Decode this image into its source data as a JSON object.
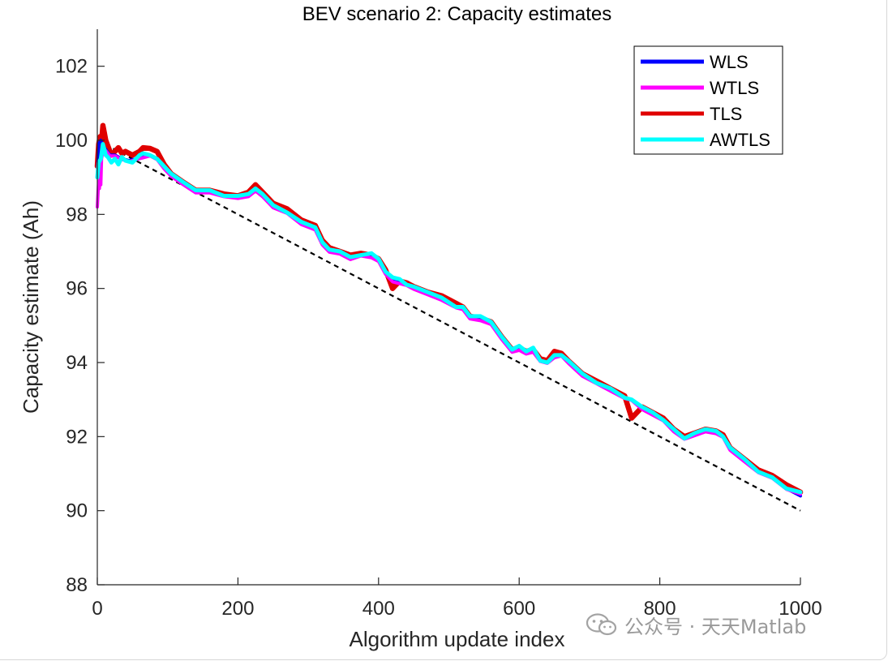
{
  "chart_data": {
    "type": "line",
    "title": "BEV scenario 2: Capacity estimates",
    "xlabel": "Algorithm update index",
    "ylabel": "Capacity estimate (Ah)",
    "xlim": [
      0,
      1000
    ],
    "ylim": [
      88,
      103
    ],
    "xticks": [
      0,
      200,
      400,
      600,
      800,
      1000
    ],
    "yticks": [
      88,
      90,
      92,
      94,
      96,
      98,
      100,
      102
    ],
    "xtick_labels": [
      "0",
      "200",
      "400",
      "600",
      "800",
      "1000"
    ],
    "ytick_labels": [
      "88",
      "90",
      "92",
      "94",
      "96",
      "98",
      "100",
      "102"
    ],
    "grid": false,
    "legend_position": "top-right",
    "series": [
      {
        "name": "WLS",
        "color": "#0000ff",
        "x": [
          0,
          2,
          5,
          8,
          12,
          18,
          25,
          35,
          45,
          55,
          65,
          75,
          85,
          95,
          105,
          120,
          140,
          160,
          180,
          200,
          215,
          225,
          235,
          250,
          270,
          290,
          310,
          320,
          330,
          345,
          360,
          375,
          390,
          400,
          410,
          420,
          430,
          440,
          450,
          470,
          490,
          510,
          520,
          530,
          545,
          560,
          575,
          590,
          600,
          610,
          620,
          630,
          640,
          650,
          660,
          670,
          690,
          710,
          730,
          750,
          760,
          775,
          790,
          805,
          820,
          835,
          850,
          865,
          880,
          890,
          900,
          920,
          940,
          960,
          980,
          1000
        ],
        "y": [
          99.0,
          99.9,
          100.0,
          99.85,
          99.75,
          99.6,
          99.6,
          99.5,
          99.45,
          99.5,
          99.55,
          99.6,
          99.5,
          99.25,
          99.05,
          98.85,
          98.6,
          98.6,
          98.5,
          98.45,
          98.5,
          98.65,
          98.5,
          98.2,
          98.05,
          97.75,
          97.6,
          97.2,
          97.0,
          96.95,
          96.8,
          96.9,
          96.85,
          96.75,
          96.4,
          96.2,
          96.15,
          96.1,
          96.0,
          95.85,
          95.7,
          95.5,
          95.45,
          95.2,
          95.15,
          95.05,
          94.65,
          94.3,
          94.35,
          94.25,
          94.3,
          94.05,
          94.0,
          94.15,
          94.2,
          94.0,
          93.65,
          93.45,
          93.25,
          93.05,
          93.0,
          92.75,
          92.6,
          92.45,
          92.15,
          91.95,
          92.05,
          92.15,
          92.1,
          92.0,
          91.65,
          91.35,
          91.05,
          90.9,
          90.6,
          90.4
        ]
      },
      {
        "name": "WTLS",
        "color": "#ff00ff",
        "x": [
          0,
          1,
          2,
          3,
          4,
          5,
          6,
          8,
          12,
          18,
          25,
          35,
          45,
          55,
          65,
          75,
          85,
          95,
          105,
          120,
          140,
          160,
          180,
          200,
          215,
          225,
          235,
          250,
          270,
          290,
          310,
          320,
          330,
          345,
          360,
          375,
          390,
          400,
          410,
          420,
          430,
          440,
          450,
          470,
          490,
          510,
          520,
          530,
          545,
          560,
          575,
          590,
          600,
          610,
          620,
          630,
          640,
          650,
          660,
          670,
          690,
          710,
          730,
          750,
          760,
          775,
          790,
          805,
          820,
          835,
          850,
          865,
          880,
          890,
          900,
          920,
          940,
          960,
          980,
          1000
        ],
        "y": [
          98.2,
          98.6,
          98.9,
          98.7,
          99.1,
          98.8,
          99.5,
          99.7,
          99.72,
          99.58,
          99.58,
          99.48,
          99.43,
          99.48,
          99.53,
          99.58,
          99.48,
          99.23,
          99.03,
          98.83,
          98.58,
          98.58,
          98.48,
          98.43,
          98.48,
          98.63,
          98.48,
          98.18,
          98.03,
          97.73,
          97.58,
          97.18,
          96.98,
          96.93,
          96.78,
          96.88,
          96.83,
          96.73,
          96.38,
          96.18,
          96.13,
          96.08,
          95.98,
          95.83,
          95.68,
          95.48,
          95.43,
          95.18,
          95.13,
          95.03,
          94.63,
          94.28,
          94.33,
          94.23,
          94.28,
          94.03,
          93.98,
          94.13,
          94.18,
          93.98,
          93.63,
          93.43,
          93.23,
          93.03,
          92.98,
          92.73,
          92.58,
          92.43,
          92.13,
          91.93,
          92.03,
          92.13,
          92.08,
          91.98,
          91.63,
          91.33,
          91.03,
          90.88,
          90.58,
          90.45
        ]
      },
      {
        "name": "TLS",
        "color": "#e00000",
        "x": [
          0,
          2,
          4,
          6,
          8,
          10,
          12,
          15,
          20,
          25,
          30,
          35,
          40,
          50,
          60,
          65,
          75,
          85,
          95,
          105,
          120,
          140,
          160,
          180,
          200,
          215,
          225,
          235,
          250,
          270,
          290,
          310,
          320,
          330,
          345,
          360,
          375,
          390,
          400,
          410,
          420,
          430,
          440,
          450,
          470,
          490,
          510,
          520,
          530,
          545,
          560,
          575,
          590,
          600,
          610,
          620,
          630,
          640,
          650,
          660,
          670,
          690,
          710,
          730,
          750,
          760,
          775,
          790,
          805,
          820,
          835,
          850,
          865,
          880,
          890,
          900,
          920,
          940,
          960,
          980,
          1000
        ],
        "y": [
          99.3,
          99.9,
          100.1,
          99.95,
          100.4,
          100.2,
          100.0,
          99.85,
          99.6,
          99.7,
          99.8,
          99.65,
          99.7,
          99.6,
          99.7,
          99.8,
          99.78,
          99.7,
          99.35,
          99.1,
          98.9,
          98.65,
          98.65,
          98.55,
          98.5,
          98.6,
          98.8,
          98.6,
          98.3,
          98.15,
          97.85,
          97.7,
          97.3,
          97.1,
          97.0,
          96.9,
          96.95,
          96.9,
          96.8,
          96.5,
          96.0,
          96.2,
          96.15,
          96.05,
          95.9,
          95.8,
          95.6,
          95.5,
          95.25,
          95.2,
          95.1,
          94.7,
          94.35,
          94.4,
          94.3,
          94.35,
          94.1,
          94.05,
          94.3,
          94.25,
          94.05,
          93.7,
          93.5,
          93.3,
          93.1,
          92.5,
          92.8,
          92.65,
          92.5,
          92.2,
          92.0,
          92.1,
          92.2,
          92.15,
          92.05,
          91.7,
          91.4,
          91.1,
          90.95,
          90.7,
          90.5
        ]
      },
      {
        "name": "AWTLS",
        "color": "#00ffff",
        "x": [
          0,
          2,
          5,
          8,
          10,
          12,
          15,
          20,
          25,
          30,
          35,
          40,
          50,
          60,
          65,
          75,
          85,
          95,
          105,
          120,
          140,
          160,
          180,
          200,
          215,
          225,
          235,
          250,
          270,
          290,
          310,
          320,
          330,
          345,
          360,
          375,
          390,
          400,
          410,
          420,
          430,
          440,
          450,
          470,
          490,
          510,
          520,
          530,
          545,
          560,
          575,
          590,
          600,
          610,
          620,
          630,
          640,
          650,
          660,
          670,
          690,
          710,
          730,
          750,
          760,
          775,
          790,
          805,
          820,
          835,
          850,
          865,
          880,
          890,
          900,
          920,
          940,
          960,
          980,
          1000
        ],
        "y": [
          99.0,
          99.4,
          99.5,
          99.9,
          99.75,
          99.6,
          99.55,
          99.4,
          99.5,
          99.35,
          99.55,
          99.45,
          99.4,
          99.6,
          99.65,
          99.6,
          99.5,
          99.3,
          99.1,
          98.9,
          98.65,
          98.65,
          98.5,
          98.5,
          98.55,
          98.7,
          98.55,
          98.25,
          98.05,
          97.8,
          97.65,
          97.25,
          97.05,
          97.0,
          96.85,
          96.9,
          96.95,
          96.8,
          96.45,
          96.3,
          96.25,
          96.1,
          96.05,
          95.9,
          95.75,
          95.5,
          95.5,
          95.25,
          95.25,
          95.1,
          94.7,
          94.35,
          94.45,
          94.3,
          94.4,
          94.05,
          94.0,
          94.2,
          94.2,
          94.05,
          93.7,
          93.45,
          93.3,
          93.05,
          93.0,
          92.8,
          92.65,
          92.45,
          92.2,
          91.95,
          92.1,
          92.2,
          92.15,
          92.0,
          91.7,
          91.4,
          91.05,
          90.9,
          90.6,
          90.5
        ]
      }
    ],
    "reference_line": {
      "style": "dashed",
      "color": "#000000",
      "x": [
        0,
        1000
      ],
      "y": [
        100,
        90
      ]
    }
  },
  "watermark": {
    "icon": "wechat-icon",
    "text": "公众号 · 天天Matlab"
  }
}
